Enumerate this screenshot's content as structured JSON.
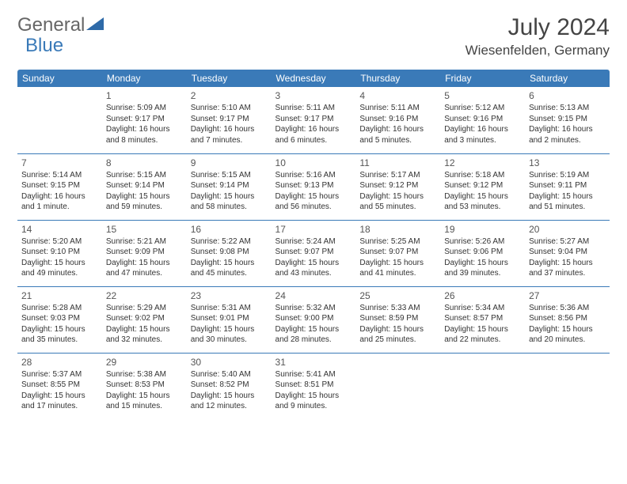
{
  "logo": {
    "text1": "General",
    "text2": "Blue",
    "triangle_color": "#2e6aa8"
  },
  "header": {
    "month_title": "July 2024",
    "location": "Wiesenfelden, Germany"
  },
  "colors": {
    "header_bg": "#3a7ab8",
    "row_border": "#3a7ab8"
  },
  "weekdays": [
    "Sunday",
    "Monday",
    "Tuesday",
    "Wednesday",
    "Thursday",
    "Friday",
    "Saturday"
  ],
  "weeks": [
    [
      null,
      {
        "n": "1",
        "sr": "Sunrise: 5:09 AM",
        "ss": "Sunset: 9:17 PM",
        "dl": "Daylight: 16 hours and 8 minutes."
      },
      {
        "n": "2",
        "sr": "Sunrise: 5:10 AM",
        "ss": "Sunset: 9:17 PM",
        "dl": "Daylight: 16 hours and 7 minutes."
      },
      {
        "n": "3",
        "sr": "Sunrise: 5:11 AM",
        "ss": "Sunset: 9:17 PM",
        "dl": "Daylight: 16 hours and 6 minutes."
      },
      {
        "n": "4",
        "sr": "Sunrise: 5:11 AM",
        "ss": "Sunset: 9:16 PM",
        "dl": "Daylight: 16 hours and 5 minutes."
      },
      {
        "n": "5",
        "sr": "Sunrise: 5:12 AM",
        "ss": "Sunset: 9:16 PM",
        "dl": "Daylight: 16 hours and 3 minutes."
      },
      {
        "n": "6",
        "sr": "Sunrise: 5:13 AM",
        "ss": "Sunset: 9:15 PM",
        "dl": "Daylight: 16 hours and 2 minutes."
      }
    ],
    [
      {
        "n": "7",
        "sr": "Sunrise: 5:14 AM",
        "ss": "Sunset: 9:15 PM",
        "dl": "Daylight: 16 hours and 1 minute."
      },
      {
        "n": "8",
        "sr": "Sunrise: 5:15 AM",
        "ss": "Sunset: 9:14 PM",
        "dl": "Daylight: 15 hours and 59 minutes."
      },
      {
        "n": "9",
        "sr": "Sunrise: 5:15 AM",
        "ss": "Sunset: 9:14 PM",
        "dl": "Daylight: 15 hours and 58 minutes."
      },
      {
        "n": "10",
        "sr": "Sunrise: 5:16 AM",
        "ss": "Sunset: 9:13 PM",
        "dl": "Daylight: 15 hours and 56 minutes."
      },
      {
        "n": "11",
        "sr": "Sunrise: 5:17 AM",
        "ss": "Sunset: 9:12 PM",
        "dl": "Daylight: 15 hours and 55 minutes."
      },
      {
        "n": "12",
        "sr": "Sunrise: 5:18 AM",
        "ss": "Sunset: 9:12 PM",
        "dl": "Daylight: 15 hours and 53 minutes."
      },
      {
        "n": "13",
        "sr": "Sunrise: 5:19 AM",
        "ss": "Sunset: 9:11 PM",
        "dl": "Daylight: 15 hours and 51 minutes."
      }
    ],
    [
      {
        "n": "14",
        "sr": "Sunrise: 5:20 AM",
        "ss": "Sunset: 9:10 PM",
        "dl": "Daylight: 15 hours and 49 minutes."
      },
      {
        "n": "15",
        "sr": "Sunrise: 5:21 AM",
        "ss": "Sunset: 9:09 PM",
        "dl": "Daylight: 15 hours and 47 minutes."
      },
      {
        "n": "16",
        "sr": "Sunrise: 5:22 AM",
        "ss": "Sunset: 9:08 PM",
        "dl": "Daylight: 15 hours and 45 minutes."
      },
      {
        "n": "17",
        "sr": "Sunrise: 5:24 AM",
        "ss": "Sunset: 9:07 PM",
        "dl": "Daylight: 15 hours and 43 minutes."
      },
      {
        "n": "18",
        "sr": "Sunrise: 5:25 AM",
        "ss": "Sunset: 9:07 PM",
        "dl": "Daylight: 15 hours and 41 minutes."
      },
      {
        "n": "19",
        "sr": "Sunrise: 5:26 AM",
        "ss": "Sunset: 9:06 PM",
        "dl": "Daylight: 15 hours and 39 minutes."
      },
      {
        "n": "20",
        "sr": "Sunrise: 5:27 AM",
        "ss": "Sunset: 9:04 PM",
        "dl": "Daylight: 15 hours and 37 minutes."
      }
    ],
    [
      {
        "n": "21",
        "sr": "Sunrise: 5:28 AM",
        "ss": "Sunset: 9:03 PM",
        "dl": "Daylight: 15 hours and 35 minutes."
      },
      {
        "n": "22",
        "sr": "Sunrise: 5:29 AM",
        "ss": "Sunset: 9:02 PM",
        "dl": "Daylight: 15 hours and 32 minutes."
      },
      {
        "n": "23",
        "sr": "Sunrise: 5:31 AM",
        "ss": "Sunset: 9:01 PM",
        "dl": "Daylight: 15 hours and 30 minutes."
      },
      {
        "n": "24",
        "sr": "Sunrise: 5:32 AM",
        "ss": "Sunset: 9:00 PM",
        "dl": "Daylight: 15 hours and 28 minutes."
      },
      {
        "n": "25",
        "sr": "Sunrise: 5:33 AM",
        "ss": "Sunset: 8:59 PM",
        "dl": "Daylight: 15 hours and 25 minutes."
      },
      {
        "n": "26",
        "sr": "Sunrise: 5:34 AM",
        "ss": "Sunset: 8:57 PM",
        "dl": "Daylight: 15 hours and 22 minutes."
      },
      {
        "n": "27",
        "sr": "Sunrise: 5:36 AM",
        "ss": "Sunset: 8:56 PM",
        "dl": "Daylight: 15 hours and 20 minutes."
      }
    ],
    [
      {
        "n": "28",
        "sr": "Sunrise: 5:37 AM",
        "ss": "Sunset: 8:55 PM",
        "dl": "Daylight: 15 hours and 17 minutes."
      },
      {
        "n": "29",
        "sr": "Sunrise: 5:38 AM",
        "ss": "Sunset: 8:53 PM",
        "dl": "Daylight: 15 hours and 15 minutes."
      },
      {
        "n": "30",
        "sr": "Sunrise: 5:40 AM",
        "ss": "Sunset: 8:52 PM",
        "dl": "Daylight: 15 hours and 12 minutes."
      },
      {
        "n": "31",
        "sr": "Sunrise: 5:41 AM",
        "ss": "Sunset: 8:51 PM",
        "dl": "Daylight: 15 hours and 9 minutes."
      },
      null,
      null,
      null
    ]
  ]
}
